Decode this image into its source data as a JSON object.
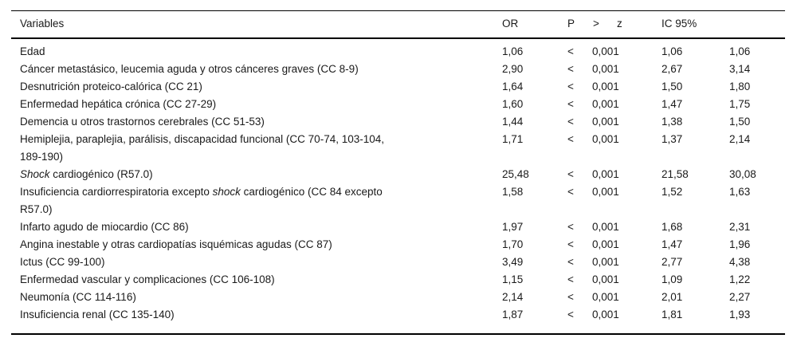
{
  "colors": {
    "background": "#ffffff",
    "text": "#1a1a1a",
    "rule": "#000000"
  },
  "table": {
    "headers": {
      "variables": "Variables",
      "or": "OR",
      "p": "P",
      "p_gt": ">",
      "p_z": "z",
      "ic95": "IC 95%"
    },
    "rows": [
      {
        "variable": [
          {
            "text": "Edad"
          }
        ],
        "or": "1,06",
        "p_sign": "<",
        "p_value": "0,001",
        "ci_lower": "1,06",
        "ci_upper": "1,06"
      },
      {
        "variable": [
          {
            "text": "Cáncer metastásico, leucemia aguda y otros cánceres graves (CC 8-9)"
          }
        ],
        "or": "2,90",
        "p_sign": "<",
        "p_value": "0,001",
        "ci_lower": "2,67",
        "ci_upper": "3,14"
      },
      {
        "variable": [
          {
            "text": "Desnutrición proteico-calórica (CC 21)"
          }
        ],
        "or": "1,64",
        "p_sign": "<",
        "p_value": "0,001",
        "ci_lower": "1,50",
        "ci_upper": "1,80"
      },
      {
        "variable": [
          {
            "text": "Enfermedad hepática crónica (CC 27-29)"
          }
        ],
        "or": "1,60",
        "p_sign": "<",
        "p_value": "0,001",
        "ci_lower": "1,47",
        "ci_upper": "1,75"
      },
      {
        "variable": [
          {
            "text": "Demencia u otros trastornos cerebrales (CC 51-53)"
          }
        ],
        "or": "1,44",
        "p_sign": "<",
        "p_value": "0,001",
        "ci_lower": "1,38",
        "ci_upper": "1,50"
      },
      {
        "variable": [
          {
            "text": "Hemiplejia, paraplejia, parálisis, discapacidad funcional (CC 70-74, 103-104,\n189-190)"
          }
        ],
        "or": "1,71",
        "p_sign": "<",
        "p_value": "0,001",
        "ci_lower": "1,37",
        "ci_upper": "2,14"
      },
      {
        "variable": [
          {
            "text": "Shock",
            "italic": true
          },
          {
            "text": " cardiogénico (R57.0)"
          }
        ],
        "or": "25,48",
        "p_sign": "<",
        "p_value": "0,001",
        "ci_lower": "21,58",
        "ci_upper": "30,08"
      },
      {
        "variable": [
          {
            "text": "Insuficiencia cardiorrespiratoria excepto "
          },
          {
            "text": "shock",
            "italic": true
          },
          {
            "text": " cardiogénico (CC 84 excepto\nR57.0)"
          }
        ],
        "or": "1,58",
        "p_sign": "<",
        "p_value": "0,001",
        "ci_lower": "1,52",
        "ci_upper": "1,63"
      },
      {
        "variable": [
          {
            "text": "Infarto agudo de miocardio (CC 86)"
          }
        ],
        "or": "1,97",
        "p_sign": "<",
        "p_value": "0,001",
        "ci_lower": "1,68",
        "ci_upper": "2,31"
      },
      {
        "variable": [
          {
            "text": "Angina inestable y otras cardiopatías isquémicas agudas (CC 87)"
          }
        ],
        "or": "1,70",
        "p_sign": "<",
        "p_value": "0,001",
        "ci_lower": "1,47",
        "ci_upper": "1,96"
      },
      {
        "variable": [
          {
            "text": "Ictus (CC 99-100)"
          }
        ],
        "or": "3,49",
        "p_sign": "<",
        "p_value": "0,001",
        "ci_lower": "2,77",
        "ci_upper": "4,38"
      },
      {
        "variable": [
          {
            "text": "Enfermedad vascular y complicaciones (CC 106-108)"
          }
        ],
        "or": "1,15",
        "p_sign": "<",
        "p_value": "0,001",
        "ci_lower": "1,09",
        "ci_upper": "1,22"
      },
      {
        "variable": [
          {
            "text": "Neumonía (CC 114-116)"
          }
        ],
        "or": "2,14",
        "p_sign": "<",
        "p_value": "0,001",
        "ci_lower": "2,01",
        "ci_upper": "2,27"
      },
      {
        "variable": [
          {
            "text": "Insuficiencia renal (CC 135-140)"
          }
        ],
        "or": "1,87",
        "p_sign": "<",
        "p_value": "0,001",
        "ci_lower": "1,81",
        "ci_upper": "1,93"
      }
    ]
  }
}
